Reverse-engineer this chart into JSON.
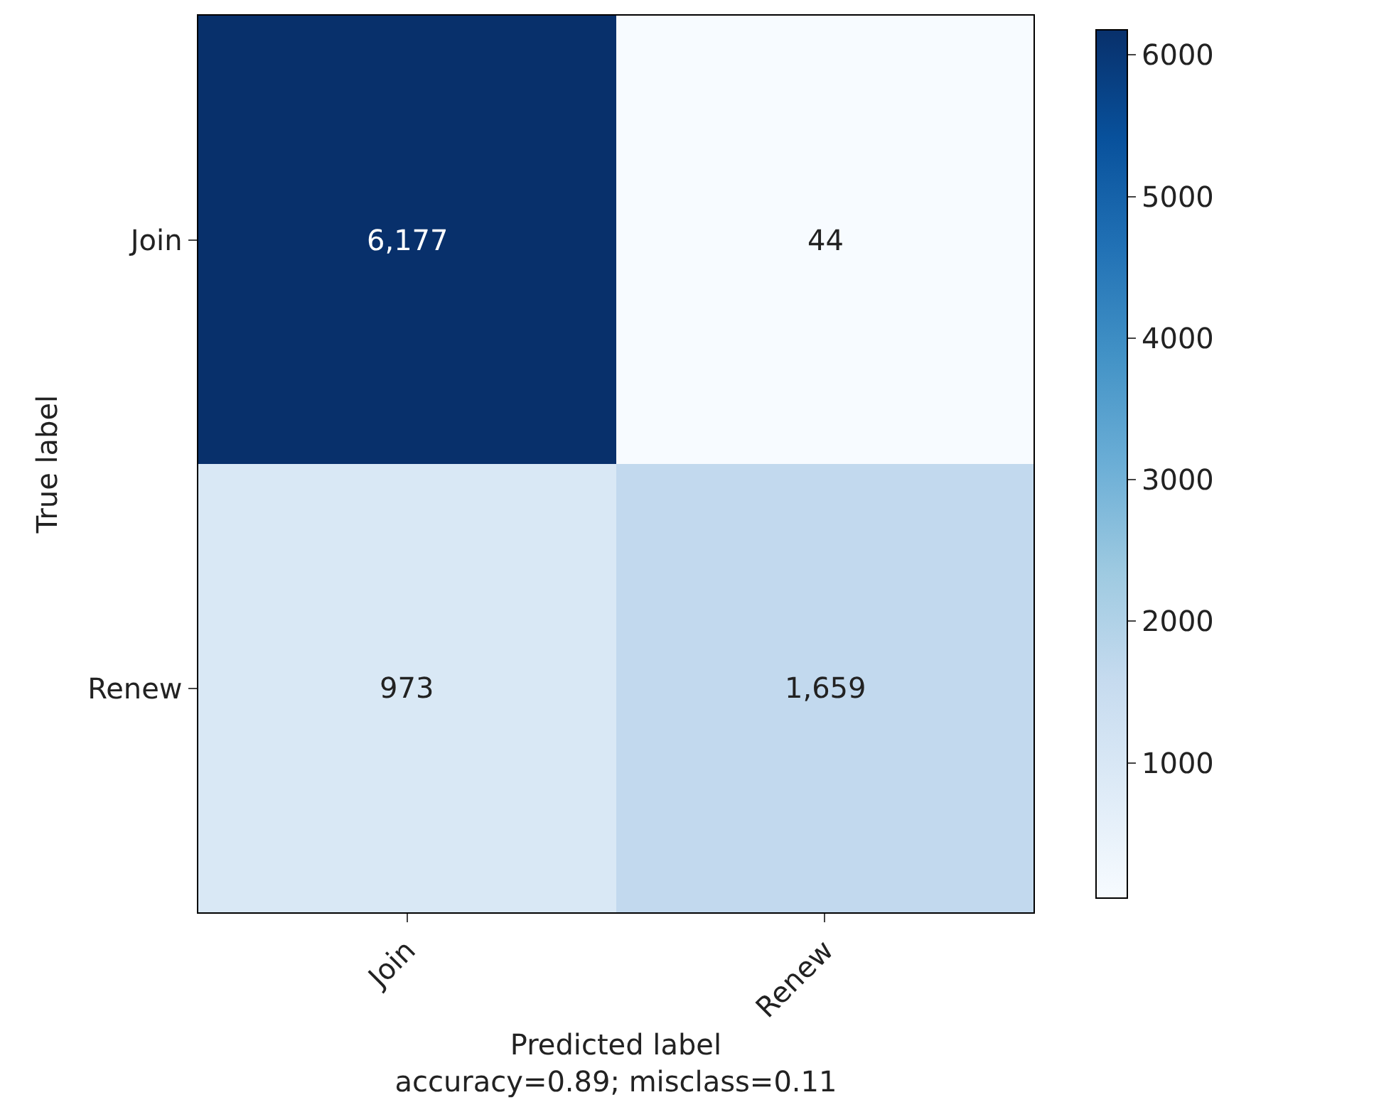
{
  "chart_data": {
    "type": "heatmap",
    "categories": [
      "Join",
      "Renew"
    ],
    "y_categories": [
      "Join",
      "Renew"
    ],
    "cells": [
      [
        6177,
        44
      ],
      [
        973,
        1659
      ]
    ],
    "cell_labels": [
      [
        "6,177",
        "44"
      ],
      [
        "973",
        "1,659"
      ]
    ],
    "clim": [
      44,
      6177
    ],
    "cticks": [
      1000,
      2000,
      3000,
      4000,
      5000,
      6000
    ],
    "xlabel": "Predicted label",
    "ylabel": "True label",
    "annotations": [
      "accuracy=0.89; misclass=0.11"
    ]
  }
}
